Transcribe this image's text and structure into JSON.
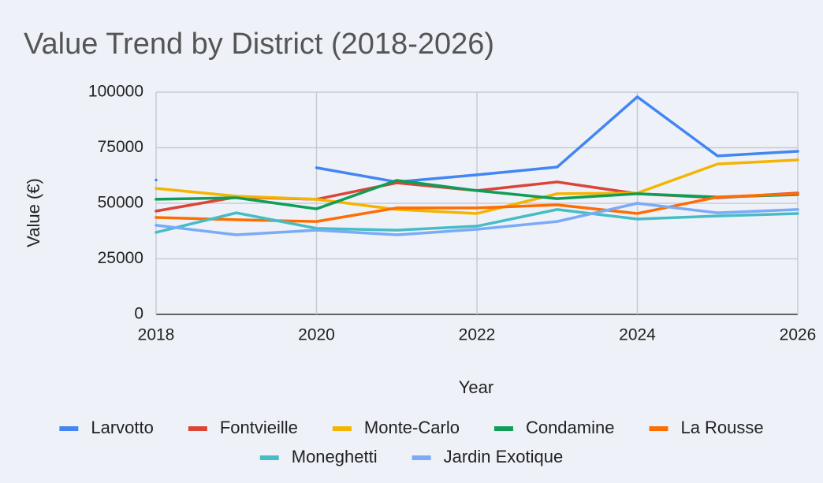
{
  "chart_data": {
    "type": "line",
    "title": "Value Trend by District (2018-2026)",
    "x_label": "Year",
    "y_label": "Value (€)",
    "x": [
      2018,
      2019,
      2020,
      2021,
      2022,
      2023,
      2024,
      2025,
      2026
    ],
    "xlim": [
      2018,
      2026
    ],
    "xticks": [
      2018,
      2020,
      2022,
      2024,
      2026
    ],
    "ylim": [
      0,
      100000
    ],
    "yticks": [
      0,
      25000,
      50000,
      75000,
      100000
    ],
    "grid": true,
    "series": [
      {
        "name": "Larvotto",
        "color": "#4285f4",
        "values": [
          60500,
          null,
          66000,
          59600,
          62800,
          66300,
          97900,
          71300,
          73400
        ]
      },
      {
        "name": "Fontvieille",
        "color": "#db4437",
        "values": [
          46500,
          52800,
          51800,
          59200,
          55700,
          59600,
          54300,
          52500,
          54600
        ]
      },
      {
        "name": "Monte-Carlo",
        "color": "#f4b400",
        "values": [
          56700,
          53200,
          51800,
          47200,
          45400,
          54300,
          54600,
          67700,
          69500
        ]
      },
      {
        "name": "Condamine",
        "color": "#0f9d58",
        "values": [
          51800,
          52500,
          47500,
          60300,
          55700,
          52100,
          54300,
          52800,
          53900
        ]
      },
      {
        "name": "La Rousse",
        "color": "#ff6d01",
        "values": [
          43600,
          42600,
          41800,
          47900,
          47900,
          49300,
          45400,
          52800,
          54300
        ]
      },
      {
        "name": "Moneghetti",
        "color": "#46bdc6",
        "values": [
          36900,
          45700,
          38700,
          37900,
          39700,
          47200,
          42900,
          44300,
          45400
        ]
      },
      {
        "name": "Jardin Exotique",
        "color": "#7baaf7",
        "values": [
          40100,
          35800,
          37900,
          35800,
          38300,
          41800,
          50000,
          45700,
          47200
        ]
      }
    ]
  }
}
